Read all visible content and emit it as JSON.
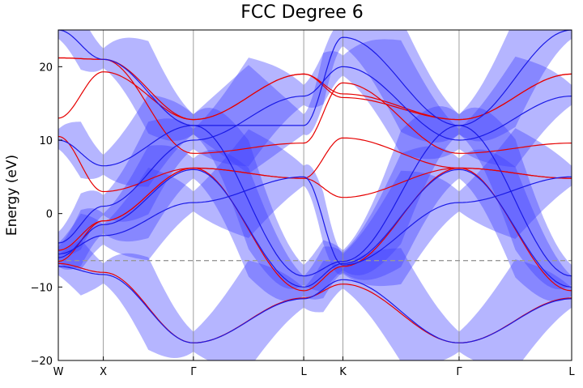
{
  "chart_data": {
    "type": "line",
    "title": "FCC Degree 6",
    "xlabel": "",
    "ylabel": "Energy (eV)",
    "ylim": [
      -20,
      25
    ],
    "yticks": [
      -20,
      -10,
      0,
      10,
      20
    ],
    "ytick_labels": [
      "−20",
      "−10",
      "0",
      "10",
      "20"
    ],
    "kpoints": [
      "W",
      "X",
      "Γ",
      "L",
      "K",
      "Γ",
      "L"
    ],
    "kpos": [
      0,
      1,
      3,
      5.45,
      6.32,
      8.9,
      11.4
    ],
    "fermi_level": -6.4,
    "grid": "vertical lines at k-points",
    "colors": {
      "reference": "#e60000",
      "model": "#1a1ae6",
      "band_fill": "#3c3cff",
      "fermi": "#999999"
    },
    "series": [
      {
        "color": "red",
        "values": [
          [
            0,
            -6.8
          ],
          [
            1,
            -8.0
          ],
          [
            3,
            -17.6
          ],
          [
            5.45,
            -11.5
          ],
          [
            6.32,
            -9.6
          ],
          [
            8.9,
            -17.6
          ],
          [
            11.4,
            -11.5
          ]
        ]
      },
      {
        "color": "red",
        "values": [
          [
            0,
            -6.5
          ],
          [
            1,
            -1.0
          ],
          [
            3,
            6.2
          ],
          [
            5.45,
            -10.5
          ],
          [
            6.32,
            -7.2
          ],
          [
            8.9,
            6.2
          ],
          [
            11.4,
            -10.5
          ]
        ]
      },
      {
        "color": "red",
        "values": [
          [
            0,
            -5.0
          ],
          [
            1,
            -1.0
          ],
          [
            3,
            6.2
          ],
          [
            5.45,
            4.8
          ],
          [
            6.32,
            2.2
          ],
          [
            8.9,
            6.2
          ],
          [
            11.4,
            4.8
          ]
        ]
      },
      {
        "color": "red",
        "values": [
          [
            0,
            10.5
          ],
          [
            1,
            3.0
          ],
          [
            3,
            6.2
          ],
          [
            5.45,
            4.8
          ],
          [
            6.32,
            10.3
          ],
          [
            8.9,
            6.2
          ],
          [
            11.4,
            4.8
          ]
        ]
      },
      {
        "color": "red",
        "values": [
          [
            0,
            13.0
          ],
          [
            1,
            19.3
          ],
          [
            3,
            12.8
          ],
          [
            5.45,
            19.0
          ],
          [
            6.32,
            15.8
          ],
          [
            8.9,
            12.8
          ],
          [
            11.4,
            19.0
          ]
        ]
      },
      {
        "color": "red",
        "values": [
          [
            0,
            21.2
          ],
          [
            1,
            21.0
          ],
          [
            3,
            8.2
          ],
          [
            5.45,
            9.6
          ],
          [
            6.32,
            17.8
          ],
          [
            8.9,
            8.2
          ],
          [
            11.4,
            9.6
          ]
        ]
      },
      {
        "color": "red",
        "values": [
          [
            0,
            21.2
          ],
          [
            1,
            21.0
          ],
          [
            3,
            12.8
          ],
          [
            5.45,
            19.0
          ],
          [
            6.32,
            16.3
          ],
          [
            8.9,
            12.8
          ],
          [
            11.4,
            19.0
          ]
        ]
      },
      {
        "color": "blue",
        "values": [
          [
            0,
            -7.2
          ],
          [
            1,
            -8.3
          ],
          [
            3,
            -17.6
          ],
          [
            5.45,
            -11.6
          ],
          [
            6.32,
            -9.0
          ],
          [
            8.9,
            -17.6
          ],
          [
            11.4,
            -11.6
          ]
        ]
      },
      {
        "color": "blue",
        "values": [
          [
            0,
            -6.0
          ],
          [
            1,
            -1.5
          ],
          [
            3,
            6.0
          ],
          [
            5.45,
            -10.0
          ],
          [
            6.32,
            -6.8
          ],
          [
            8.9,
            6.0
          ],
          [
            11.4,
            -10.0
          ]
        ]
      },
      {
        "color": "blue",
        "values": [
          [
            0,
            -5.5
          ],
          [
            1,
            -3.0
          ],
          [
            3,
            1.5
          ],
          [
            5.45,
            5.0
          ],
          [
            6.32,
            -7.0
          ],
          [
            8.9,
            1.5
          ],
          [
            11.4,
            5.0
          ]
        ]
      },
      {
        "color": "blue",
        "values": [
          [
            0,
            10.0
          ],
          [
            1,
            6.5
          ],
          [
            3,
            12.0
          ],
          [
            5.45,
            -8.5
          ],
          [
            6.32,
            -6.5
          ],
          [
            8.9,
            12.0
          ],
          [
            11.4,
            -8.5
          ]
        ]
      },
      {
        "color": "blue",
        "values": [
          [
            0,
            -4.0
          ],
          [
            1,
            1.0
          ],
          [
            3,
            10.0
          ],
          [
            5.45,
            16.0
          ],
          [
            6.32,
            20.0
          ],
          [
            8.9,
            10.0
          ],
          [
            11.4,
            16.0
          ]
        ]
      },
      {
        "color": "blue",
        "values": [
          [
            0,
            25
          ],
          [
            1,
            21.0
          ],
          [
            3,
            12.0
          ],
          [
            5.45,
            12.0
          ],
          [
            6.32,
            24.0
          ],
          [
            8.9,
            12.0
          ],
          [
            11.4,
            25
          ]
        ]
      }
    ]
  }
}
